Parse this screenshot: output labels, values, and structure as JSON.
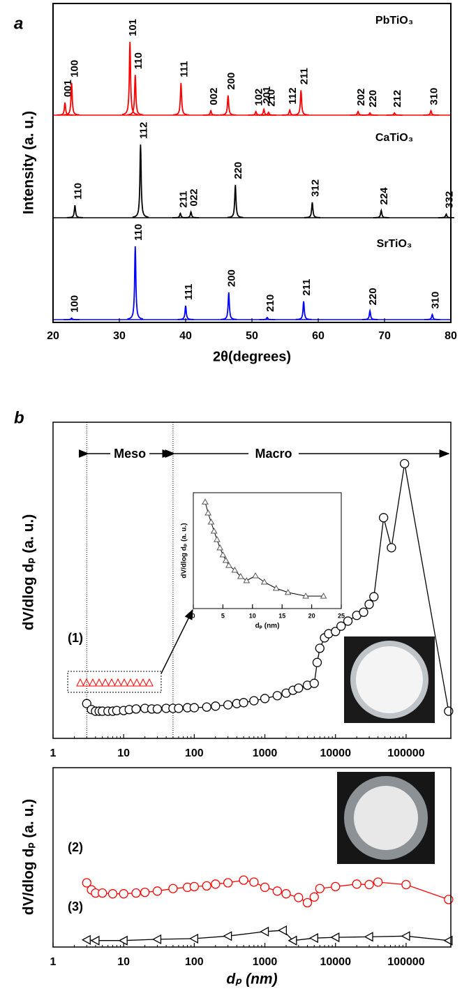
{
  "chart_data": [
    {
      "type": "xrd",
      "panel": "a",
      "xlabel": "2θ(degrees)",
      "ylabel": "Intensity (a. u.)",
      "xlim": [
        20,
        80
      ],
      "xticks": [
        20,
        30,
        40,
        50,
        60,
        70,
        80
      ],
      "series": [
        {
          "name": "PbTiO₃",
          "color": "#ff0000",
          "x": [
            21.8,
            22.8,
            31.6,
            32.4,
            39.3,
            43.8,
            46.4,
            50.6,
            51.8,
            52.5,
            55.7,
            57.4,
            66.0,
            67.8,
            71.5,
            77.0
          ],
          "values": [
            17,
            44,
            100,
            55,
            44,
            6,
            27,
            5,
            8,
            4,
            7,
            34,
            5,
            3,
            3,
            6
          ],
          "labels": [
            "001",
            "100",
            "101",
            "110",
            "111",
            "002",
            "200",
            "102",
            "201",
            "210",
            "112",
            "211",
            "202",
            "220",
            "212",
            "310"
          ]
        },
        {
          "name": "CaTiO₃",
          "color": "#000000",
          "x": [
            23.3,
            33.2,
            39.2,
            40.8,
            47.5,
            59.1,
            69.5,
            79.3
          ],
          "values": [
            17,
            100,
            6,
            8,
            45,
            21,
            10,
            5
          ],
          "labels": [
            "110",
            "112",
            "211",
            "022",
            "220",
            "312",
            "224",
            "332"
          ]
        },
        {
          "name": "SrTiO₃",
          "color": "#0000ff",
          "x": [
            22.8,
            32.4,
            40.0,
            46.5,
            52.3,
            57.8,
            67.8,
            77.2
          ],
          "values": [
            2,
            100,
            19,
            37,
            3,
            25,
            12,
            7
          ],
          "labels": [
            "100",
            "110",
            "111",
            "200",
            "210",
            "211",
            "220",
            "310"
          ]
        }
      ]
    },
    {
      "type": "scatter",
      "panel": "b",
      "ylabel": "dV/dlog dₚ (a. u.)",
      "log_x": true,
      "xlim": [
        1,
        430000
      ],
      "xticks": [
        1,
        10,
        100,
        1000,
        10000,
        100000
      ],
      "ylim": [
        0,
        100
      ],
      "boundaries": [
        3,
        50
      ],
      "annotations": [
        "Meso",
        "Macro"
      ],
      "series": [
        {
          "name": "(1)",
          "color": "#000000",
          "marker": "circle",
          "x": [
            3,
            3.5,
            4,
            4.5,
            5,
            6,
            7,
            8,
            10,
            12,
            15,
            20,
            25,
            30,
            40,
            50,
            60,
            80,
            100,
            150,
            200,
            300,
            400,
            500,
            700,
            1000,
            1500,
            2000,
            2500,
            3000,
            4000,
            5000,
            5500,
            6000,
            7000,
            8000,
            10000,
            12000,
            15000,
            20000,
            25000,
            30000,
            35000,
            48000,
            62000,
            95000,
            400000
          ],
          "values": [
            11.0,
            9.1,
            8.6,
            8.6,
            8.6,
            8.6,
            8.6,
            8.8,
            8.8,
            9.1,
            9.3,
            9.5,
            9.3,
            9.3,
            9.5,
            9.5,
            9.5,
            9.7,
            9.7,
            9.9,
            10.2,
            10.6,
            11.0,
            11.3,
            11.9,
            12.6,
            13.5,
            14.3,
            15.2,
            15.9,
            16.8,
            17.4,
            24,
            28.5,
            31.8,
            33.1,
            33.8,
            35.5,
            37.1,
            38.9,
            39.9,
            42.4,
            44.8,
            69.8,
            60.3,
            86.9,
            8.6
          ]
        }
      ]
    },
    {
      "type": "inset",
      "xlabel": "dₚ (nm)",
      "ylabel": "dV/dlog dₚ (a. u.)",
      "xlim": [
        0,
        25
      ],
      "xticks": [
        0,
        5,
        10,
        15,
        20,
        25
      ],
      "ylim": [
        0,
        100
      ],
      "series": [
        {
          "color": "#555555",
          "marker": "triangle",
          "x": [
            2,
            2.5,
            3,
            3.5,
            4,
            4.5,
            5,
            5.5,
            6,
            7,
            8,
            9,
            10.5,
            12,
            14,
            16,
            19,
            22
          ],
          "values": [
            92,
            82.5,
            74.7,
            66.9,
            59.6,
            52.4,
            46.4,
            41.6,
            37.3,
            33.1,
            27.7,
            24.1,
            28.3,
            22.9,
            17.5,
            13.9,
            10.8,
            10.8
          ]
        }
      ]
    },
    {
      "type": "scatter",
      "xlabel": "dₚ (nm)",
      "ylabel": "dV/dlog dₚ (a. u.)",
      "log_x": true,
      "xlim": [
        1,
        430000
      ],
      "xticks": [
        1,
        10,
        100,
        1000,
        10000,
        100000
      ],
      "ylim": [
        0,
        100
      ],
      "series": [
        {
          "name": "(2)",
          "color": "#ff0000",
          "marker": "circle",
          "x": [
            3,
            3.5,
            4,
            5,
            7,
            10,
            15,
            20,
            30,
            50,
            80,
            100,
            150,
            200,
            300,
            500,
            700,
            1000,
            1500,
            2000,
            3000,
            4000,
            5000,
            6000,
            10000,
            20000,
            30000,
            40000,
            100000,
            400000
          ],
          "values": [
            35.8,
            31.9,
            30.1,
            30.1,
            29.7,
            29.7,
            30.1,
            30.5,
            31.2,
            32.6,
            33.3,
            33.7,
            34.1,
            35.1,
            35.8,
            37.3,
            36.2,
            33.3,
            31.2,
            29.7,
            27.6,
            24.7,
            27.9,
            32.6,
            33.7,
            35.1,
            34.8,
            36.2,
            34.8,
            26.5
          ]
        },
        {
          "name": "(3)",
          "color": "#000000",
          "marker": "left-triangle",
          "x": [
            3,
            4,
            10,
            30,
            100,
            300,
            1000,
            1800,
            2500,
            5000,
            10000,
            30000,
            100000,
            400000
          ],
          "values": [
            4.0,
            3.6,
            3.6,
            4.3,
            4.7,
            6.1,
            8.6,
            9.3,
            3.6,
            5.0,
            5.4,
            5.7,
            6.1,
            3.6
          ]
        }
      ]
    }
  ]
}
